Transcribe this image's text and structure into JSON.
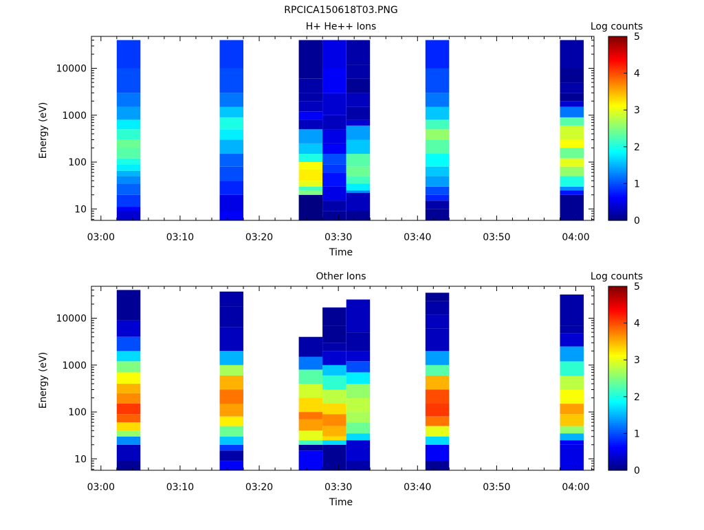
{
  "figure_title": "RPCICA150618T03.PNG",
  "chart_data": [
    {
      "type": "heatmap",
      "title": "H+ He++ Ions",
      "xlabel": "Time",
      "ylabel": "Energy (eV)",
      "x_ticks": [
        "03:00",
        "03:10",
        "03:20",
        "03:30",
        "03:40",
        "03:50",
        "04:00"
      ],
      "y_ticks": [
        "10",
        "100",
        "1000",
        "10000"
      ],
      "y_scale": "log",
      "colorbar_label": "Log counts",
      "colorbar_ticks": [
        "0",
        "1",
        "2",
        "3",
        "4",
        "5"
      ],
      "z_range": [
        0,
        5
      ],
      "columns": [
        {
          "start": "03:02",
          "end": "03:05",
          "bands": [
            [
              9,
              0.4
            ],
            [
              11,
              0.6
            ],
            [
              20,
              0.9
            ],
            [
              35,
              1.1
            ],
            [
              50,
              1.3
            ],
            [
              65,
              1.5
            ],
            [
              90,
              1.8
            ],
            [
              120,
              2.0
            ],
            [
              200,
              2.3
            ],
            [
              300,
              2.4
            ],
            [
              500,
              2.1
            ],
            [
              800,
              1.8
            ],
            [
              1500,
              1.4
            ],
            [
              3000,
              1.2
            ],
            [
              10000,
              1.0
            ],
            [
              40000,
              0.9
            ]
          ]
        },
        {
          "start": "03:15",
          "end": "03:18",
          "bands": [
            [
              9,
              0.6
            ],
            [
              20,
              0.5
            ],
            [
              40,
              0.8
            ],
            [
              80,
              1.0
            ],
            [
              150,
              1.1
            ],
            [
              300,
              1.5
            ],
            [
              500,
              1.8
            ],
            [
              900,
              2.0
            ],
            [
              1500,
              1.6
            ],
            [
              3000,
              1.2
            ],
            [
              10000,
              1.0
            ],
            [
              40000,
              0.9
            ]
          ]
        },
        {
          "start": "03:25",
          "end": "03:28",
          "bands": [
            [
              20,
              0.0
            ],
            [
              25,
              2.5
            ],
            [
              30,
              2.2
            ],
            [
              40,
              3.0
            ],
            [
              70,
              3.2
            ],
            [
              100,
              3.1
            ],
            [
              150,
              2.0
            ],
            [
              250,
              1.6
            ],
            [
              500,
              1.4
            ],
            [
              800,
              0.3
            ],
            [
              1200,
              0.6
            ],
            [
              2000,
              0.3
            ],
            [
              3000,
              0.2
            ],
            [
              6000,
              0.2
            ],
            [
              10000,
              0.1
            ],
            [
              40000,
              0.1
            ]
          ]
        },
        {
          "start": "03:28",
          "end": "03:31",
          "bands": [
            [
              9,
              0.1
            ],
            [
              15,
              0.2
            ],
            [
              30,
              0.5
            ],
            [
              60,
              0.7
            ],
            [
              90,
              0.9
            ],
            [
              150,
              1.0
            ],
            [
              250,
              0.6
            ],
            [
              500,
              0.5
            ],
            [
              1000,
              0.3
            ],
            [
              3000,
              0.4
            ],
            [
              10000,
              0.6
            ],
            [
              40000,
              0.5
            ]
          ]
        },
        {
          "start": "03:31",
          "end": "03:34",
          "bands": [
            [
              9,
              0.1
            ],
            [
              22,
              0.3
            ],
            [
              25,
              1.3
            ],
            [
              35,
              1.8
            ],
            [
              50,
              2.2
            ],
            [
              80,
              2.4
            ],
            [
              150,
              2.3
            ],
            [
              300,
              1.6
            ],
            [
              600,
              1.4
            ],
            [
              800,
              0.4
            ],
            [
              1500,
              0.2
            ],
            [
              3000,
              0.3
            ],
            [
              6000,
              0.1
            ],
            [
              12000,
              0.2
            ],
            [
              40000,
              0.2
            ]
          ]
        },
        {
          "start": "03:41",
          "end": "03:44",
          "bands": [
            [
              10,
              0.1
            ],
            [
              15,
              0.2
            ],
            [
              20,
              0.8
            ],
            [
              30,
              1.0
            ],
            [
              50,
              1.4
            ],
            [
              80,
              1.6
            ],
            [
              150,
              1.9
            ],
            [
              300,
              2.3
            ],
            [
              500,
              2.6
            ],
            [
              800,
              2.2
            ],
            [
              1500,
              1.6
            ],
            [
              3000,
              1.2
            ],
            [
              10000,
              1.0
            ],
            [
              40000,
              0.8
            ]
          ]
        },
        {
          "start": "03:58",
          "end": "04:01",
          "bands": [
            [
              20,
              0.1
            ],
            [
              25,
              0.7
            ],
            [
              30,
              1.3
            ],
            [
              50,
              2.0
            ],
            [
              80,
              2.6
            ],
            [
              120,
              3.0
            ],
            [
              200,
              2.4
            ],
            [
              300,
              3.1
            ],
            [
              600,
              2.9
            ],
            [
              900,
              2.3
            ],
            [
              1500,
              1.2
            ],
            [
              2000,
              0.4
            ],
            [
              3000,
              0.1
            ],
            [
              5000,
              0.2
            ],
            [
              10000,
              0.1
            ],
            [
              40000,
              0.2
            ]
          ]
        }
      ]
    },
    {
      "type": "heatmap",
      "title": "Other Ions",
      "xlabel": "Time",
      "ylabel": "Energy (eV)",
      "x_ticks": [
        "03:00",
        "03:10",
        "03:20",
        "03:30",
        "03:40",
        "03:50",
        "04:00"
      ],
      "y_ticks": [
        "10",
        "100",
        "1000",
        "10000"
      ],
      "y_scale": "log",
      "colorbar_label": "Log counts",
      "colorbar_ticks": [
        "0",
        "1",
        "2",
        "3",
        "4",
        "5"
      ],
      "z_range": [
        0,
        5
      ],
      "columns": [
        {
          "start": "03:02",
          "end": "03:05",
          "bands": [
            [
              9,
              0.1
            ],
            [
              20,
              0.3
            ],
            [
              30,
              1.3
            ],
            [
              40,
              2.6
            ],
            [
              60,
              3.3
            ],
            [
              90,
              3.9
            ],
            [
              150,
              4.1
            ],
            [
              250,
              3.7
            ],
            [
              400,
              3.5
            ],
            [
              700,
              3.1
            ],
            [
              1200,
              2.5
            ],
            [
              2000,
              1.7
            ],
            [
              4000,
              1.0
            ],
            [
              9000,
              0.4
            ],
            [
              40000,
              0.1
            ]
          ]
        },
        {
          "start": "03:15",
          "end": "03:18",
          "bands": [
            [
              9,
              0.6
            ],
            [
              15,
              0.2
            ],
            [
              20,
              0.9
            ],
            [
              30,
              1.6
            ],
            [
              50,
              2.4
            ],
            [
              80,
              3.2
            ],
            [
              150,
              3.6
            ],
            [
              300,
              3.8
            ],
            [
              600,
              3.5
            ],
            [
              1000,
              2.7
            ],
            [
              2000,
              1.5
            ],
            [
              6500,
              0.3
            ],
            [
              18000,
              0.2
            ],
            [
              37000,
              0.2
            ]
          ]
        },
        {
          "start": "03:25",
          "end": "03:28",
          "bands": [
            [
              15,
              0.6
            ],
            [
              20,
              0.1
            ],
            [
              25,
              2.2
            ],
            [
              40,
              3.0
            ],
            [
              70,
              3.6
            ],
            [
              100,
              3.8
            ],
            [
              200,
              3.3
            ],
            [
              400,
              2.9
            ],
            [
              800,
              2.3
            ],
            [
              1500,
              1.2
            ],
            [
              4000,
              0.2
            ]
          ]
        },
        {
          "start": "03:28",
          "end": "03:31",
          "bands": [
            [
              9,
              0.1
            ],
            [
              20,
              0.1
            ],
            [
              25,
              1.7
            ],
            [
              30,
              3.3
            ],
            [
              50,
              3.5
            ],
            [
              90,
              3.7
            ],
            [
              150,
              3.3
            ],
            [
              300,
              2.8
            ],
            [
              600,
              2.1
            ],
            [
              1000,
              1.6
            ],
            [
              2000,
              0.4
            ],
            [
              3000,
              0.2
            ],
            [
              7000,
              0.1
            ],
            [
              17000,
              0.1
            ]
          ]
        },
        {
          "start": "03:31",
          "end": "03:34",
          "bands": [
            [
              9,
              0.2
            ],
            [
              25,
              0.4
            ],
            [
              35,
              1.7
            ],
            [
              60,
              2.4
            ],
            [
              100,
              2.7
            ],
            [
              200,
              2.8
            ],
            [
              400,
              2.6
            ],
            [
              700,
              1.8
            ],
            [
              1200,
              1.0
            ],
            [
              2000,
              0.4
            ],
            [
              5000,
              0.2
            ],
            [
              25000,
              0.3
            ]
          ]
        },
        {
          "start": "03:41",
          "end": "03:44",
          "bands": [
            [
              9,
              0.1
            ],
            [
              20,
              0.6
            ],
            [
              30,
              1.7
            ],
            [
              50,
              3.0
            ],
            [
              80,
              3.8
            ],
            [
              150,
              4.1
            ],
            [
              300,
              4.0
            ],
            [
              600,
              3.5
            ],
            [
              1000,
              2.3
            ],
            [
              2000,
              1.4
            ],
            [
              6000,
              0.3
            ],
            [
              12000,
              0.3
            ],
            [
              23000,
              0.2
            ],
            [
              35000,
              0.1
            ]
          ]
        },
        {
          "start": "03:58",
          "end": "04:01",
          "bands": [
            [
              20,
              0.5
            ],
            [
              25,
              0.6
            ],
            [
              35,
              1.5
            ],
            [
              50,
              2.6
            ],
            [
              90,
              3.4
            ],
            [
              150,
              3.6
            ],
            [
              300,
              3.1
            ],
            [
              600,
              2.8
            ],
            [
              1200,
              2.1
            ],
            [
              2500,
              1.4
            ],
            [
              4800,
              0.4
            ],
            [
              7000,
              0.2
            ],
            [
              32000,
              0.2
            ]
          ]
        }
      ]
    }
  ]
}
